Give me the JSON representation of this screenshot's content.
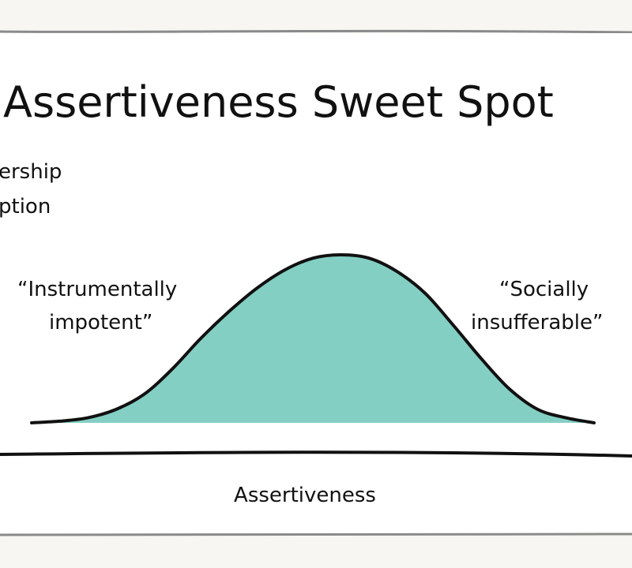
{
  "colors": {
    "curve_fill": "#84cfc4",
    "ink": "#111111",
    "paper": "#ffffff",
    "background": "#f7f6f2"
  },
  "chart_data": {
    "type": "area",
    "title": "Assertiveness Sweet Spot",
    "ylabel_lines": [
      "ership",
      "ption"
    ],
    "xlabel": "Assertiveness",
    "annotations": {
      "left": [
        "“Instrumentally",
        "impotent”"
      ],
      "right": [
        "“Socially",
        "insufferable”"
      ]
    },
    "x": [
      0,
      1,
      2,
      3,
      4,
      5,
      6,
      7,
      8,
      9,
      10,
      11,
      12,
      13,
      14,
      15,
      16,
      17,
      18,
      19,
      20
    ],
    "values": [
      0.0,
      0.01,
      0.03,
      0.08,
      0.17,
      0.32,
      0.5,
      0.66,
      0.8,
      0.91,
      0.98,
      1.0,
      0.98,
      0.9,
      0.77,
      0.58,
      0.38,
      0.2,
      0.08,
      0.03,
      0.0
    ],
    "grid": false,
    "legend": "none"
  }
}
